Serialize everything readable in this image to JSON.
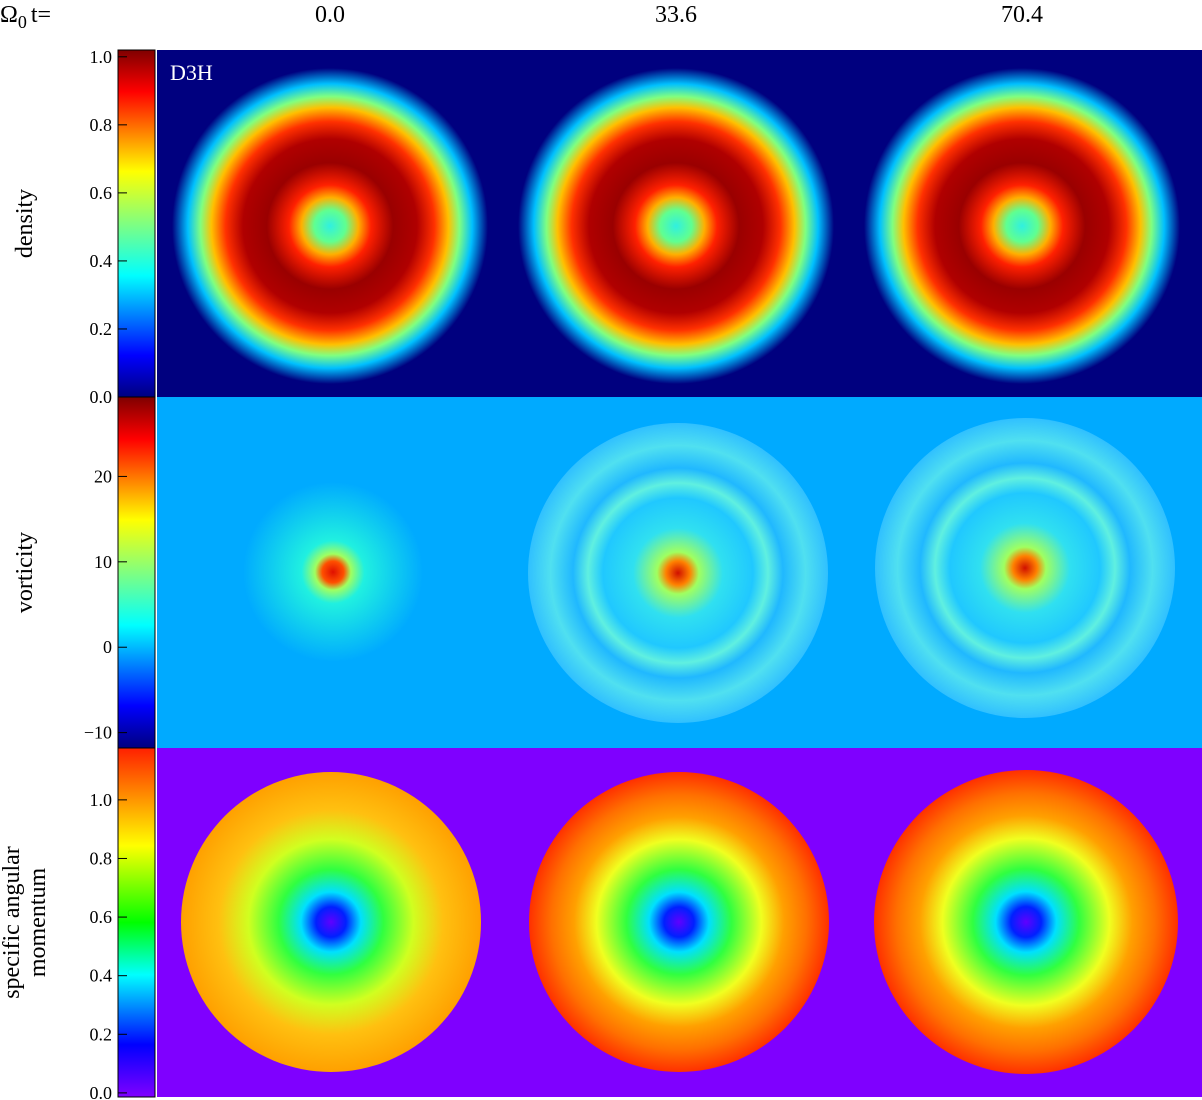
{
  "header": {
    "symbol": "Ω",
    "subscript": "0",
    "suffix": "t=",
    "times": [
      "0.0",
      "33.6",
      "70.4"
    ]
  },
  "annotation": "D3H",
  "rows": [
    {
      "label": [
        "density"
      ],
      "lim": [
        0,
        1.02
      ],
      "ticks": [
        {
          "value": 0,
          "label": "0.0"
        },
        {
          "value": 0.2,
          "label": "0.2"
        },
        {
          "value": 0.4,
          "label": "0.4"
        },
        {
          "value": 0.6,
          "label": "0.6"
        },
        {
          "value": 0.8,
          "label": "0.8"
        },
        {
          "value": 1,
          "label": "1.0"
        }
      ]
    },
    {
      "label": [
        "vorticity"
      ],
      "lim": [
        -11.8,
        29.3
      ],
      "ticks": [
        {
          "value": -10,
          "label": "−10"
        },
        0,
        10,
        20
      ]
    },
    {
      "label": [
        "specific angular",
        "momentum"
      ],
      "lim": [
        -0.014,
        1.177
      ],
      "ticks": [
        {
          "value": 0,
          "label": "0.0"
        },
        {
          "value": 0.2,
          "label": "0.2"
        },
        {
          "value": 0.4,
          "label": "0.4"
        },
        {
          "value": 0.6,
          "label": "0.6"
        },
        {
          "value": 0.8,
          "label": "0.8"
        },
        {
          "value": 1,
          "label": "1.0"
        }
      ]
    }
  ]
}
